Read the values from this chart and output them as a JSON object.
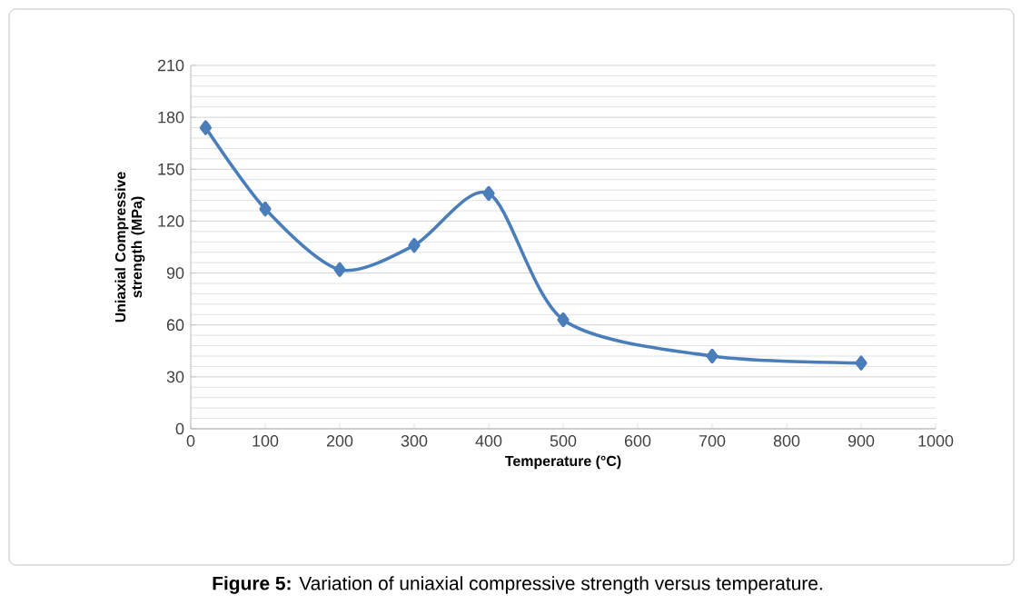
{
  "chart_data": {
    "type": "line",
    "xlabel": "Temperature (°C)",
    "ylabel": "Uniaxial Compressive strength (MPa)",
    "x": [
      20,
      100,
      200,
      300,
      400,
      500,
      700,
      900
    ],
    "series": [
      {
        "color": "#4a7ebb",
        "values": [
          174,
          127,
          92,
          106,
          136,
          63,
          42,
          38
        ]
      }
    ],
    "xlim": [
      0,
      1000
    ],
    "xticks": [
      0,
      100,
      200,
      300,
      400,
      500,
      600,
      700,
      800,
      900,
      1000
    ],
    "ylim": [
      0,
      210
    ],
    "yticks": [
      0,
      30,
      60,
      90,
      120,
      150,
      180,
      210
    ],
    "grid": "y",
    "marker": "diamond",
    "line_style": "solid",
    "annotations": [
      "**Figure 5:** Variation of  uniaxial compressive strength versus temperature."
    ]
  }
}
